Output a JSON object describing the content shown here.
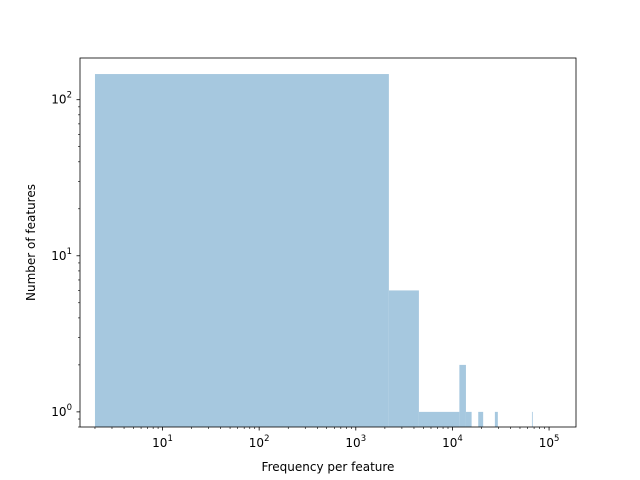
{
  "chart_data": {
    "type": "bar",
    "subtype": "histogram",
    "title": "",
    "xlabel": "Frequency per feature",
    "ylabel": "Number of features",
    "x_scale": "log",
    "y_scale": "log",
    "xlim": [
      1.4,
      190000
    ],
    "ylim": [
      0.8,
      185
    ],
    "grid": false,
    "bar_color": "#a6c8df",
    "x_ticks": [
      {
        "value": 10,
        "base": "10",
        "exp": "1"
      },
      {
        "value": 100,
        "base": "10",
        "exp": "2"
      },
      {
        "value": 1000,
        "base": "10",
        "exp": "3"
      },
      {
        "value": 10000,
        "base": "10",
        "exp": "4"
      },
      {
        "value": 100000,
        "base": "10",
        "exp": "5"
      }
    ],
    "y_ticks": [
      {
        "value": 1,
        "base": "10",
        "exp": "0"
      },
      {
        "value": 10,
        "base": "10",
        "exp": "1"
      },
      {
        "value": 100,
        "base": "10",
        "exp": "2"
      }
    ],
    "bins": [
      {
        "x0": 2,
        "x1": 2200,
        "count": 146
      },
      {
        "x0": 2200,
        "x1": 4500,
        "count": 6
      },
      {
        "x0": 4500,
        "x1": 11800,
        "count": 1
      },
      {
        "x0": 11800,
        "x1": 13800,
        "count": 2
      },
      {
        "x0": 13800,
        "x1": 15800,
        "count": 1
      },
      {
        "x0": 18500,
        "x1": 20800,
        "count": 1
      },
      {
        "x0": 27500,
        "x1": 29500,
        "count": 1
      },
      {
        "x0": 66500,
        "x1": 67500,
        "count": 1
      }
    ]
  }
}
